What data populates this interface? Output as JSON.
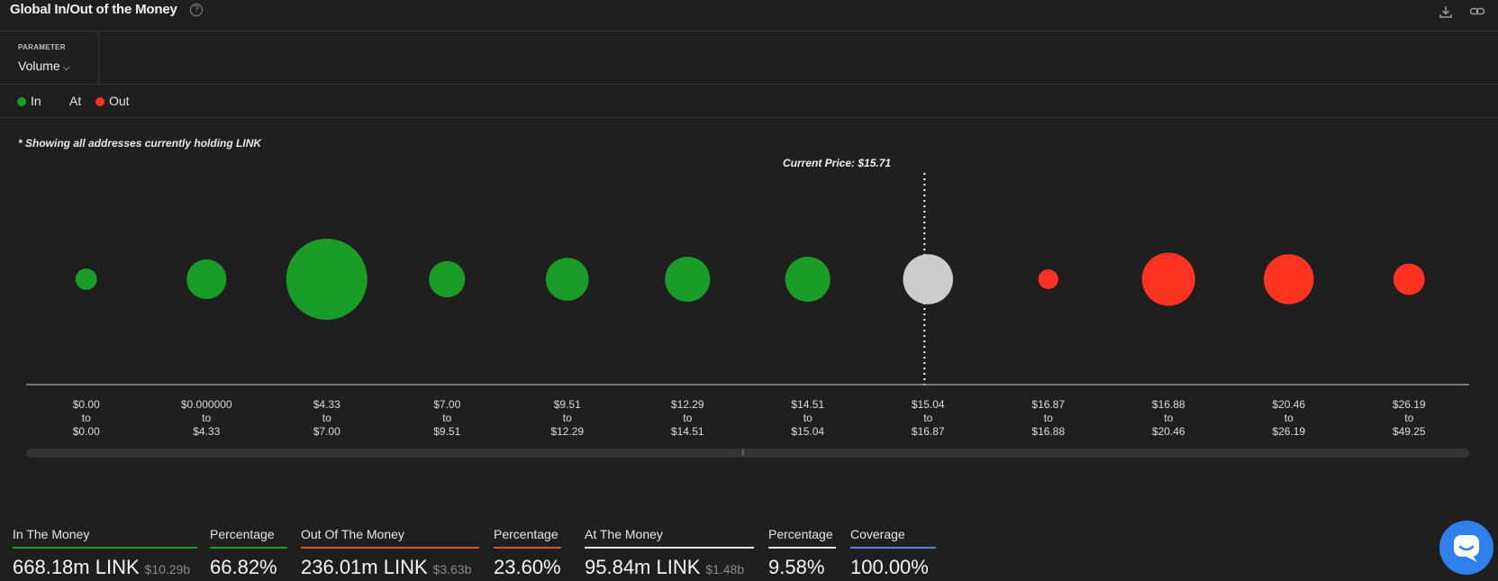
{
  "header": {
    "title": "Global In/Out of the Money",
    "help_icon": "question-circle-icon",
    "download_icon": "download-icon",
    "link_icon": "link-icon"
  },
  "parameter": {
    "label": "PARAMETER",
    "value": "Volume"
  },
  "legend": [
    {
      "label": "In",
      "color": "#1a9c28"
    },
    {
      "label": "At",
      "color": ""
    },
    {
      "label": "Out",
      "color": "#ff3322"
    }
  ],
  "note": "* Showing all addresses currently holding LINK",
  "current_price_label": "Current Price: $15.71",
  "chart_data": {
    "type": "scatter",
    "current_price": 15.71,
    "bubbles": [
      {
        "from": "$0.00",
        "to": "$0.00",
        "status": "in",
        "relative_volume": 0.07
      },
      {
        "from": "$0.000000",
        "to": "$4.33",
        "status": "in",
        "relative_volume": 0.24
      },
      {
        "from": "$4.33",
        "to": "$7.00",
        "status": "in",
        "relative_volume": 1.0
      },
      {
        "from": "$7.00",
        "to": "$9.51",
        "status": "in",
        "relative_volume": 0.2
      },
      {
        "from": "$9.51",
        "to": "$12.29",
        "status": "in",
        "relative_volume": 0.28
      },
      {
        "from": "$12.29",
        "to": "$14.51",
        "status": "in",
        "relative_volume": 0.31
      },
      {
        "from": "$14.51",
        "to": "$15.04",
        "status": "in",
        "relative_volume": 0.31
      },
      {
        "from": "$15.04",
        "to": "$16.87",
        "status": "at",
        "relative_volume": 0.38
      },
      {
        "from": "$16.87",
        "to": "$16.88",
        "status": "out",
        "relative_volume": 0.06
      },
      {
        "from": "$16.88",
        "to": "$20.46",
        "status": "out",
        "relative_volume": 0.43
      },
      {
        "from": "$20.46",
        "to": "$26.19",
        "status": "out",
        "relative_volume": 0.38
      },
      {
        "from": "$26.19",
        "to": "$49.25",
        "status": "out",
        "relative_volume": 0.15
      }
    ],
    "range_connector": "to",
    "colors": {
      "in": "#1a9c28",
      "at": "#cccccc",
      "out": "#ff3322"
    }
  },
  "stats": [
    {
      "label": "In The Money",
      "value": "668.18m LINK",
      "sub": "$10.29b",
      "color": "#1a9c28"
    },
    {
      "label": "Percentage",
      "value": "66.82%",
      "sub": "",
      "color": "#1a9c28"
    },
    {
      "label": "Out Of The Money",
      "value": "236.01m LINK",
      "sub": "$3.63b",
      "color": "#e0502a"
    },
    {
      "label": "Percentage",
      "value": "23.60%",
      "sub": "",
      "color": "#e0502a"
    },
    {
      "label": "At The Money",
      "value": "95.84m LINK",
      "sub": "$1.48b",
      "color": "#e6e6e6"
    },
    {
      "label": "Percentage",
      "value": "9.58%",
      "sub": "",
      "color": "#e6e6e6"
    },
    {
      "label": "Coverage",
      "value": "100.00%",
      "sub": "",
      "color": "#5b7fe0"
    }
  ],
  "chat_icon": "chat-bubble-icon"
}
